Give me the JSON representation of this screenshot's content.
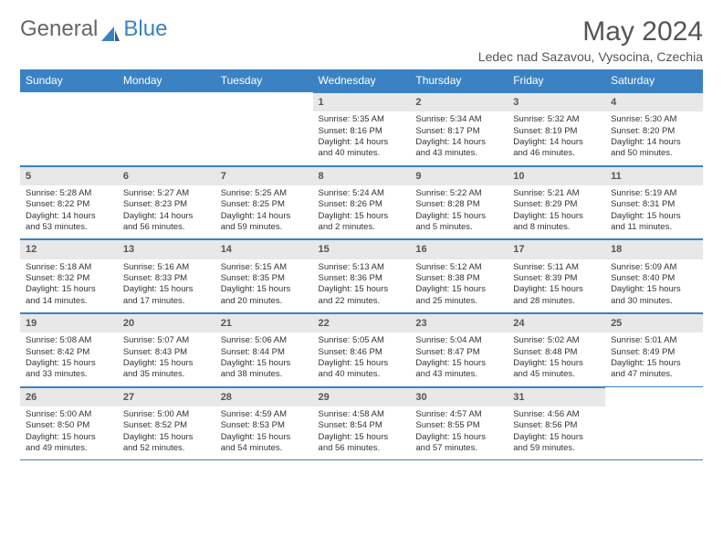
{
  "logo": {
    "text1": "General",
    "text2": "Blue"
  },
  "title": "May 2024",
  "location": "Ledec nad Sazavou, Vysocina, Czechia",
  "colors": {
    "header_bg": "#3b82c4",
    "header_text": "#ffffff",
    "daynum_bg": "#e8e8e8",
    "border": "#3b82c4",
    "text": "#333333"
  },
  "weekdays": [
    "Sunday",
    "Monday",
    "Tuesday",
    "Wednesday",
    "Thursday",
    "Friday",
    "Saturday"
  ],
  "weeks": [
    [
      null,
      null,
      null,
      {
        "n": "1",
        "sr": "5:35 AM",
        "ss": "8:16 PM",
        "dl": "14 hours and 40 minutes."
      },
      {
        "n": "2",
        "sr": "5:34 AM",
        "ss": "8:17 PM",
        "dl": "14 hours and 43 minutes."
      },
      {
        "n": "3",
        "sr": "5:32 AM",
        "ss": "8:19 PM",
        "dl": "14 hours and 46 minutes."
      },
      {
        "n": "4",
        "sr": "5:30 AM",
        "ss": "8:20 PM",
        "dl": "14 hours and 50 minutes."
      }
    ],
    [
      {
        "n": "5",
        "sr": "5:28 AM",
        "ss": "8:22 PM",
        "dl": "14 hours and 53 minutes."
      },
      {
        "n": "6",
        "sr": "5:27 AM",
        "ss": "8:23 PM",
        "dl": "14 hours and 56 minutes."
      },
      {
        "n": "7",
        "sr": "5:25 AM",
        "ss": "8:25 PM",
        "dl": "14 hours and 59 minutes."
      },
      {
        "n": "8",
        "sr": "5:24 AM",
        "ss": "8:26 PM",
        "dl": "15 hours and 2 minutes."
      },
      {
        "n": "9",
        "sr": "5:22 AM",
        "ss": "8:28 PM",
        "dl": "15 hours and 5 minutes."
      },
      {
        "n": "10",
        "sr": "5:21 AM",
        "ss": "8:29 PM",
        "dl": "15 hours and 8 minutes."
      },
      {
        "n": "11",
        "sr": "5:19 AM",
        "ss": "8:31 PM",
        "dl": "15 hours and 11 minutes."
      }
    ],
    [
      {
        "n": "12",
        "sr": "5:18 AM",
        "ss": "8:32 PM",
        "dl": "15 hours and 14 minutes."
      },
      {
        "n": "13",
        "sr": "5:16 AM",
        "ss": "8:33 PM",
        "dl": "15 hours and 17 minutes."
      },
      {
        "n": "14",
        "sr": "5:15 AM",
        "ss": "8:35 PM",
        "dl": "15 hours and 20 minutes."
      },
      {
        "n": "15",
        "sr": "5:13 AM",
        "ss": "8:36 PM",
        "dl": "15 hours and 22 minutes."
      },
      {
        "n": "16",
        "sr": "5:12 AM",
        "ss": "8:38 PM",
        "dl": "15 hours and 25 minutes."
      },
      {
        "n": "17",
        "sr": "5:11 AM",
        "ss": "8:39 PM",
        "dl": "15 hours and 28 minutes."
      },
      {
        "n": "18",
        "sr": "5:09 AM",
        "ss": "8:40 PM",
        "dl": "15 hours and 30 minutes."
      }
    ],
    [
      {
        "n": "19",
        "sr": "5:08 AM",
        "ss": "8:42 PM",
        "dl": "15 hours and 33 minutes."
      },
      {
        "n": "20",
        "sr": "5:07 AM",
        "ss": "8:43 PM",
        "dl": "15 hours and 35 minutes."
      },
      {
        "n": "21",
        "sr": "5:06 AM",
        "ss": "8:44 PM",
        "dl": "15 hours and 38 minutes."
      },
      {
        "n": "22",
        "sr": "5:05 AM",
        "ss": "8:46 PM",
        "dl": "15 hours and 40 minutes."
      },
      {
        "n": "23",
        "sr": "5:04 AM",
        "ss": "8:47 PM",
        "dl": "15 hours and 43 minutes."
      },
      {
        "n": "24",
        "sr": "5:02 AM",
        "ss": "8:48 PM",
        "dl": "15 hours and 45 minutes."
      },
      {
        "n": "25",
        "sr": "5:01 AM",
        "ss": "8:49 PM",
        "dl": "15 hours and 47 minutes."
      }
    ],
    [
      {
        "n": "26",
        "sr": "5:00 AM",
        "ss": "8:50 PM",
        "dl": "15 hours and 49 minutes."
      },
      {
        "n": "27",
        "sr": "5:00 AM",
        "ss": "8:52 PM",
        "dl": "15 hours and 52 minutes."
      },
      {
        "n": "28",
        "sr": "4:59 AM",
        "ss": "8:53 PM",
        "dl": "15 hours and 54 minutes."
      },
      {
        "n": "29",
        "sr": "4:58 AM",
        "ss": "8:54 PM",
        "dl": "15 hours and 56 minutes."
      },
      {
        "n": "30",
        "sr": "4:57 AM",
        "ss": "8:55 PM",
        "dl": "15 hours and 57 minutes."
      },
      {
        "n": "31",
        "sr": "4:56 AM",
        "ss": "8:56 PM",
        "dl": "15 hours and 59 minutes."
      },
      null
    ]
  ]
}
